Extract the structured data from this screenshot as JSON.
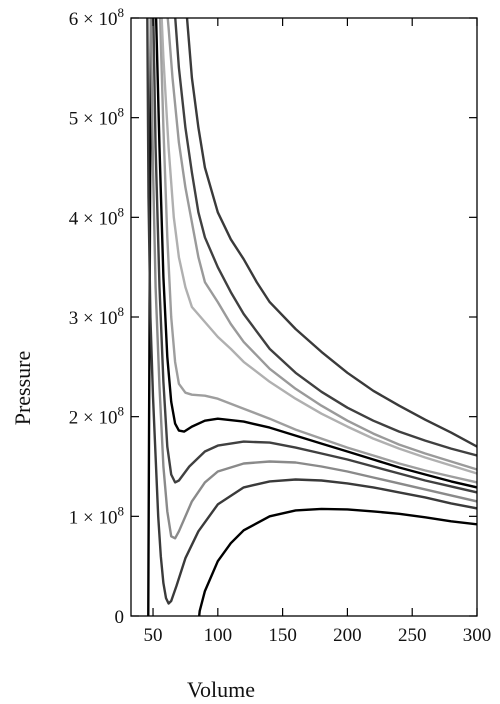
{
  "chart_data": {
    "type": "line",
    "title": "",
    "xlabel": "Volume",
    "ylabel": "Pressure",
    "xlim": [
      33,
      300
    ],
    "ylim": [
      0,
      600000000
    ],
    "grid": false,
    "legend": "none",
    "x_ticks": [
      {
        "value": 50,
        "label": "50"
      },
      {
        "value": 100,
        "label": "100"
      },
      {
        "value": 150,
        "label": "150"
      },
      {
        "value": 200,
        "label": "200"
      },
      {
        "value": 250,
        "label": "250"
      },
      {
        "value": 300,
        "label": "300"
      }
    ],
    "y_ticks": [
      {
        "value": 0,
        "label": "0",
        "mantissa": "",
        "exponent": ""
      },
      {
        "value": 100000000,
        "label": "",
        "mantissa": "1 × 10",
        "exponent": "8"
      },
      {
        "value": 200000000,
        "label": "",
        "mantissa": "2 × 10",
        "exponent": "8"
      },
      {
        "value": 300000000,
        "label": "",
        "mantissa": "3 × 10",
        "exponent": "8"
      },
      {
        "value": 400000000,
        "label": "",
        "mantissa": "4 × 10",
        "exponent": "8"
      },
      {
        "value": 500000000,
        "label": "",
        "mantissa": "5 × 10",
        "exponent": "8"
      },
      {
        "value": 600000000,
        "label": "",
        "mantissa": "6 × 10",
        "exponent": "8"
      }
    ],
    "series": [
      {
        "color": "#000000",
        "points": [
          [
            46.3,
            -20000000
          ],
          [
            46.5,
            60000000
          ],
          [
            47,
            200000000
          ],
          [
            47.5,
            350000000
          ],
          [
            48,
            500000000
          ],
          [
            48.5,
            620000000
          ]
        ]
      },
      {
        "color": "#000000",
        "points": [
          [
            84,
            -20000000
          ],
          [
            86,
            5000000
          ],
          [
            90,
            25000000
          ],
          [
            100,
            55000000
          ],
          [
            110,
            73000000
          ],
          [
            120,
            86000000
          ],
          [
            140,
            100000000
          ],
          [
            160,
            106000000
          ],
          [
            180,
            107500000
          ],
          [
            200,
            107000000
          ],
          [
            220,
            105000000
          ],
          [
            240,
            102500000
          ],
          [
            260,
            99000000
          ],
          [
            280,
            95000000
          ],
          [
            300,
            92000000
          ]
        ]
      },
      {
        "color": "#3a3a3a",
        "points": [
          [
            45.5,
            620000000
          ],
          [
            46.5,
            420000000
          ],
          [
            48,
            300000000
          ],
          [
            50,
            220000000
          ],
          [
            52,
            160000000
          ],
          [
            54,
            100000000
          ],
          [
            56,
            60000000
          ],
          [
            58,
            33000000
          ],
          [
            60,
            18000000
          ],
          [
            62,
            12500000
          ],
          [
            64,
            15000000
          ],
          [
            68,
            30000000
          ],
          [
            75,
            58000000
          ],
          [
            85,
            85000000
          ],
          [
            100,
            112000000
          ],
          [
            120,
            129000000
          ],
          [
            140,
            135000000
          ],
          [
            160,
            137000000
          ],
          [
            180,
            136000000
          ],
          [
            200,
            133000000
          ],
          [
            220,
            129000000
          ],
          [
            240,
            124000000
          ],
          [
            260,
            119000000
          ],
          [
            280,
            113000000
          ],
          [
            300,
            108000000
          ]
        ]
      },
      {
        "color": "#8a8a8a",
        "points": [
          [
            48,
            620000000
          ],
          [
            50,
            450000000
          ],
          [
            52,
            330000000
          ],
          [
            55,
            230000000
          ],
          [
            58,
            150000000
          ],
          [
            61,
            105000000
          ],
          [
            64,
            80000000
          ],
          [
            67,
            78000000
          ],
          [
            70,
            85000000
          ],
          [
            80,
            115000000
          ],
          [
            90,
            134000000
          ],
          [
            100,
            145000000
          ],
          [
            120,
            153000000
          ],
          [
            140,
            155000000
          ],
          [
            160,
            154000000
          ],
          [
            180,
            150000000
          ],
          [
            200,
            145000000
          ],
          [
            220,
            139000000
          ],
          [
            240,
            133000000
          ],
          [
            260,
            127000000
          ],
          [
            280,
            121000000
          ],
          [
            300,
            115000000
          ]
        ]
      },
      {
        "color": "#404040",
        "points": [
          [
            50,
            620000000
          ],
          [
            52,
            470000000
          ],
          [
            55,
            330000000
          ],
          [
            58,
            235000000
          ],
          [
            61,
            170000000
          ],
          [
            64,
            142000000
          ],
          [
            67,
            134000000
          ],
          [
            70,
            136000000
          ],
          [
            78,
            150000000
          ],
          [
            90,
            165000000
          ],
          [
            100,
            171000000
          ],
          [
            120,
            175000000
          ],
          [
            140,
            174000000
          ],
          [
            160,
            169000000
          ],
          [
            180,
            163000000
          ],
          [
            200,
            157000000
          ],
          [
            220,
            150000000
          ],
          [
            240,
            143000000
          ],
          [
            260,
            136000000
          ],
          [
            280,
            130000000
          ],
          [
            300,
            124000000
          ]
        ]
      },
      {
        "color": "#000000",
        "points": [
          [
            52,
            620000000
          ],
          [
            55,
            470000000
          ],
          [
            58,
            340000000
          ],
          [
            61,
            260000000
          ],
          [
            64,
            215000000
          ],
          [
            67,
            193000000
          ],
          [
            70,
            186000000
          ],
          [
            74,
            185000000
          ],
          [
            80,
            190000000
          ],
          [
            90,
            196000000
          ],
          [
            100,
            198000000
          ],
          [
            120,
            195000000
          ],
          [
            140,
            189000000
          ],
          [
            160,
            181000000
          ],
          [
            180,
            173000000
          ],
          [
            200,
            165000000
          ],
          [
            220,
            157000000
          ],
          [
            240,
            149000000
          ],
          [
            260,
            142000000
          ],
          [
            280,
            135000000
          ],
          [
            300,
            129000000
          ]
        ]
      },
      {
        "color": "#9e9e9e",
        "points": [
          [
            55,
            620000000
          ],
          [
            58,
            490000000
          ],
          [
            61,
            380000000
          ],
          [
            64,
            300000000
          ],
          [
            67,
            255000000
          ],
          [
            70,
            233000000
          ],
          [
            75,
            224000000
          ],
          [
            80,
            222000000
          ],
          [
            90,
            221000000
          ],
          [
            100,
            218000000
          ],
          [
            120,
            208000000
          ],
          [
            140,
            198000000
          ],
          [
            160,
            187000000
          ],
          [
            180,
            178000000
          ],
          [
            200,
            169000000
          ],
          [
            220,
            161000000
          ],
          [
            240,
            153000000
          ],
          [
            260,
            146000000
          ],
          [
            280,
            140000000
          ],
          [
            300,
            134000000
          ]
        ]
      },
      {
        "color": "#b0b0b0",
        "points": [
          [
            56,
            620000000
          ],
          [
            58,
            560000000
          ],
          [
            62,
            470000000
          ],
          [
            66,
            400000000
          ],
          [
            70,
            360000000
          ],
          [
            75,
            330000000
          ],
          [
            80,
            310000000
          ],
          [
            90,
            295000000
          ],
          [
            100,
            280000000
          ],
          [
            110,
            268000000
          ],
          [
            120,
            255000000
          ],
          [
            140,
            235000000
          ],
          [
            160,
            218000000
          ],
          [
            180,
            203000000
          ],
          [
            200,
            190000000
          ],
          [
            220,
            178000000
          ],
          [
            240,
            168000000
          ],
          [
            260,
            159000000
          ],
          [
            280,
            151000000
          ],
          [
            300,
            143000000
          ]
        ]
      },
      {
        "color": "#9a9a9a",
        "points": [
          [
            60,
            620000000
          ],
          [
            62,
            590000000
          ],
          [
            65,
            540000000
          ],
          [
            70,
            475000000
          ],
          [
            75,
            430000000
          ],
          [
            80,
            395000000
          ],
          [
            85,
            360000000
          ],
          [
            90,
            335000000
          ],
          [
            100,
            315000000
          ],
          [
            110,
            293000000
          ],
          [
            120,
            275000000
          ],
          [
            140,
            248000000
          ],
          [
            160,
            228000000
          ],
          [
            180,
            211000000
          ],
          [
            200,
            196000000
          ],
          [
            220,
            183000000
          ],
          [
            240,
            172000000
          ],
          [
            260,
            163000000
          ],
          [
            280,
            155000000
          ],
          [
            300,
            147000000
          ]
        ]
      },
      {
        "color": "#404040",
        "points": [
          [
            66,
            620000000
          ],
          [
            70,
            550000000
          ],
          [
            75,
            490000000
          ],
          [
            80,
            445000000
          ],
          [
            85,
            405000000
          ],
          [
            90,
            380000000
          ],
          [
            100,
            350000000
          ],
          [
            110,
            325000000
          ],
          [
            120,
            303000000
          ],
          [
            140,
            268000000
          ],
          [
            160,
            244000000
          ],
          [
            180,
            225000000
          ],
          [
            200,
            209000000
          ],
          [
            220,
            196000000
          ],
          [
            240,
            185000000
          ],
          [
            260,
            176000000
          ],
          [
            280,
            168000000
          ],
          [
            300,
            161000000
          ]
        ]
      },
      {
        "color": "#3a3a3a",
        "points": [
          [
            75,
            620000000
          ],
          [
            80,
            540000000
          ],
          [
            85,
            490000000
          ],
          [
            90,
            450000000
          ],
          [
            100,
            405000000
          ],
          [
            110,
            378000000
          ],
          [
            120,
            358000000
          ],
          [
            130,
            335000000
          ],
          [
            140,
            315000000
          ],
          [
            160,
            288000000
          ],
          [
            180,
            265000000
          ],
          [
            200,
            244000000
          ],
          [
            220,
            226000000
          ],
          [
            240,
            211000000
          ],
          [
            260,
            197000000
          ],
          [
            280,
            184000000
          ],
          [
            300,
            170000000
          ]
        ]
      }
    ]
  }
}
